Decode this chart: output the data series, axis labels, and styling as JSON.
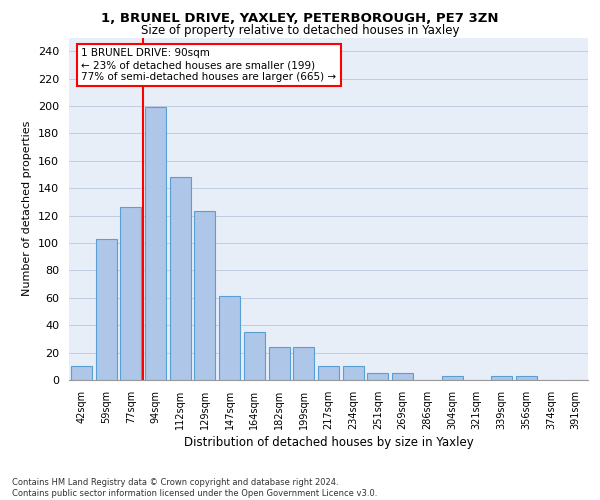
{
  "title1": "1, BRUNEL DRIVE, YAXLEY, PETERBOROUGH, PE7 3ZN",
  "title2": "Size of property relative to detached houses in Yaxley",
  "xlabel": "Distribution of detached houses by size in Yaxley",
  "ylabel": "Number of detached properties",
  "categories": [
    "42sqm",
    "59sqm",
    "77sqm",
    "94sqm",
    "112sqm",
    "129sqm",
    "147sqm",
    "164sqm",
    "182sqm",
    "199sqm",
    "217sqm",
    "234sqm",
    "251sqm",
    "269sqm",
    "286sqm",
    "304sqm",
    "321sqm",
    "339sqm",
    "356sqm",
    "374sqm",
    "391sqm"
  ],
  "values": [
    10,
    103,
    126,
    199,
    148,
    123,
    61,
    35,
    24,
    24,
    10,
    10,
    5,
    5,
    0,
    3,
    0,
    3,
    3,
    0,
    0
  ],
  "bar_color": "#aec6e8",
  "bar_edge_color": "#5a9fd4",
  "red_line_x": 2.5,
  "annotation_text": "1 BRUNEL DRIVE: 90sqm\n← 23% of detached houses are smaller (199)\n77% of semi-detached houses are larger (665) →",
  "ylim": [
    0,
    250
  ],
  "yticks": [
    0,
    20,
    40,
    60,
    80,
    100,
    120,
    140,
    160,
    180,
    200,
    220,
    240
  ],
  "footnote": "Contains HM Land Registry data © Crown copyright and database right 2024.\nContains public sector information licensed under the Open Government Licence v3.0.",
  "background_color": "#e8eef8"
}
